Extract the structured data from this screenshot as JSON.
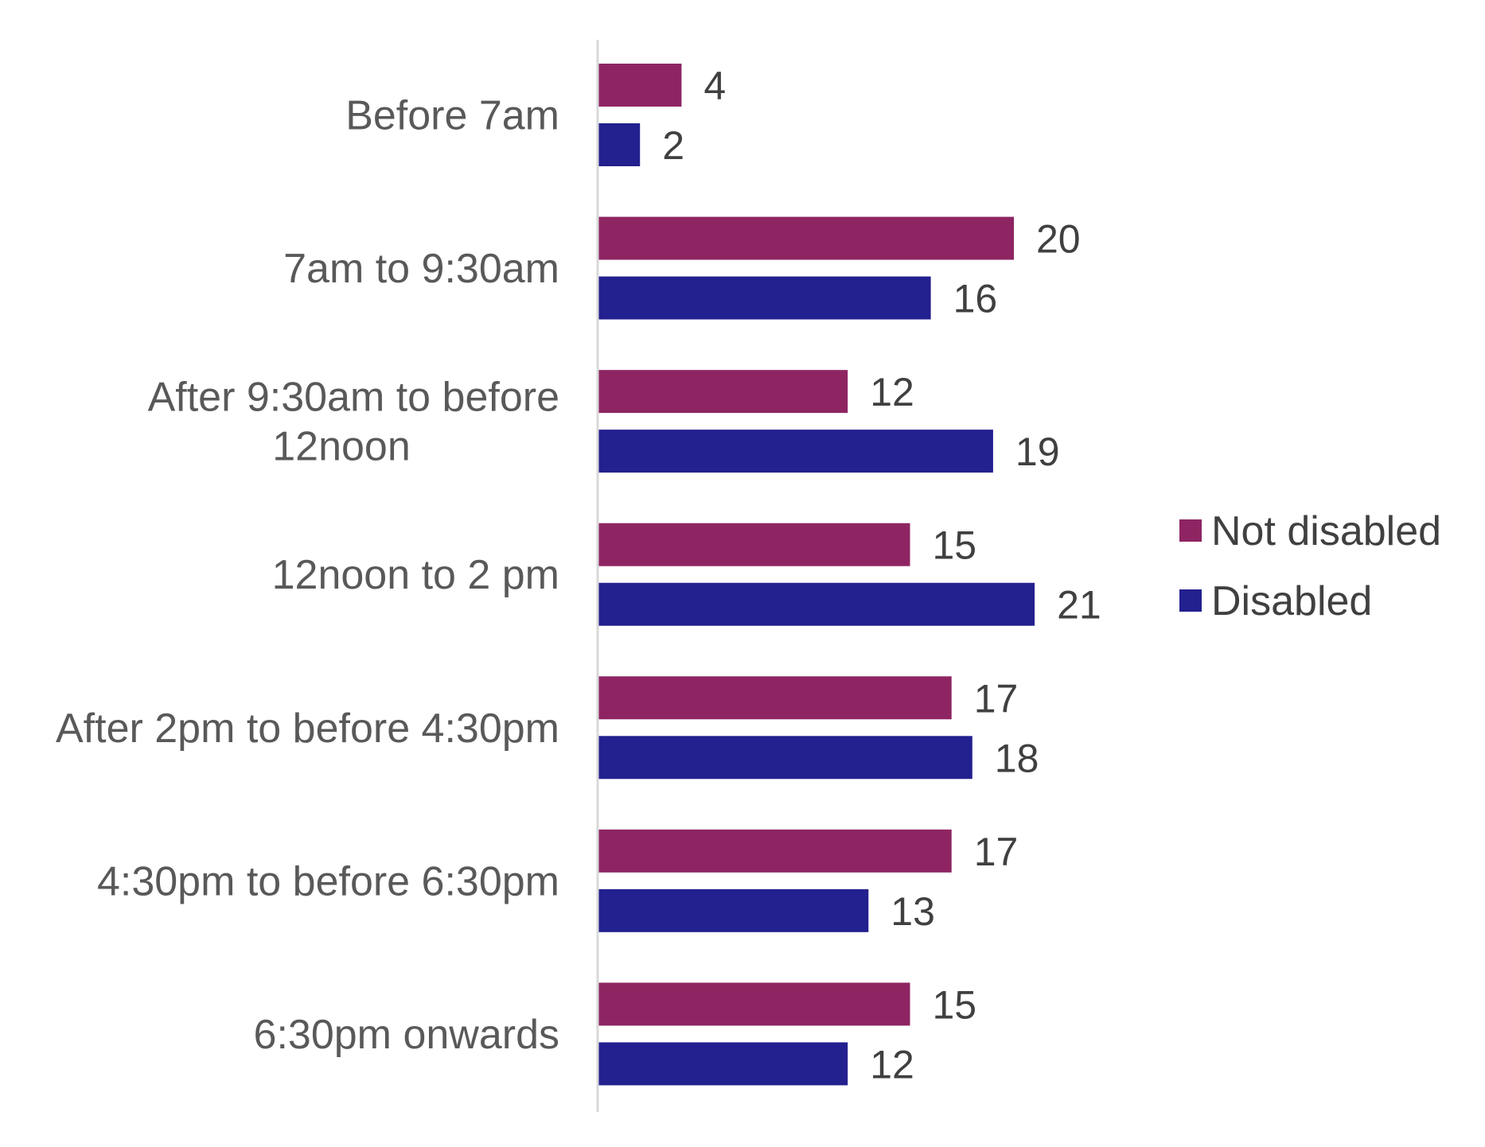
{
  "chart_data": {
    "type": "bar",
    "orientation": "horizontal",
    "categories": [
      [
        "Before 7am"
      ],
      [
        "7am to 9:30am"
      ],
      [
        "After 9:30am to before",
        "12noon"
      ],
      [
        "12noon to 2 pm"
      ],
      [
        "After 2pm to before 4:30pm"
      ],
      [
        "4:30pm to before 6:30pm"
      ],
      [
        "6:30pm onwards"
      ]
    ],
    "series": [
      {
        "name": "Not disabled",
        "color": "#8E2562",
        "values": [
          4,
          20,
          12,
          15,
          17,
          17,
          15
        ]
      },
      {
        "name": "Disabled",
        "color": "#23208F",
        "values": [
          2,
          16,
          19,
          21,
          18,
          13,
          12
        ]
      }
    ],
    "title": "",
    "xlabel": "",
    "ylabel": "",
    "xlim": [
      0,
      24
    ],
    "grid": false,
    "data_labels": true,
    "legend": "right"
  }
}
